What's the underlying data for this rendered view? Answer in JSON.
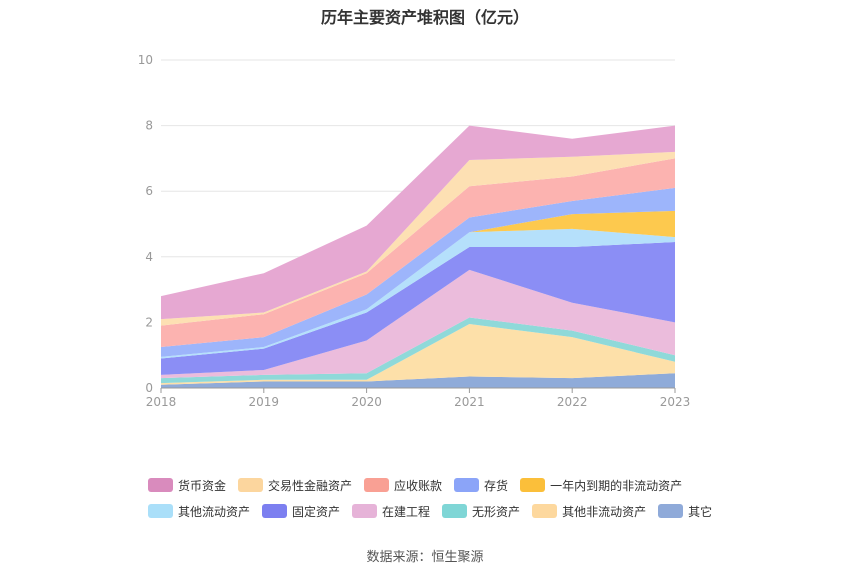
{
  "title": "历年主要资产堆积图（亿元）",
  "source": "数据来源：恒生聚源",
  "chart_data": {
    "type": "area",
    "stacked": true,
    "x": [
      "2018",
      "2019",
      "2020",
      "2021",
      "2022",
      "2023"
    ],
    "ylim": [
      0,
      10
    ],
    "yticks": [
      0,
      2,
      4,
      6,
      8,
      10
    ],
    "grid": true,
    "legend_position": "bottom",
    "series": [
      {
        "name": "其它",
        "color": "#8fabd9",
        "values": [
          0.1,
          0.2,
          0.2,
          0.35,
          0.3,
          0.45
        ]
      },
      {
        "name": "其他非流动资产",
        "color": "#fde0a9",
        "values": [
          0.05,
          0.05,
          0.05,
          1.6,
          1.25,
          0.35
        ]
      },
      {
        "name": "无形资产",
        "color": "#8fd9d9",
        "values": [
          0.15,
          0.15,
          0.2,
          0.2,
          0.2,
          0.2
        ]
      },
      {
        "name": "在建工程",
        "color": "#ebbcdc",
        "values": [
          0.1,
          0.15,
          1.0,
          1.45,
          0.85,
          1.0
        ]
      },
      {
        "name": "固定资产",
        "color": "#8b8ef5",
        "values": [
          0.5,
          0.65,
          0.85,
          0.7,
          1.7,
          2.45
        ]
      },
      {
        "name": "其他流动资产",
        "color": "#b5e0fb",
        "values": [
          0.05,
          0.05,
          0.1,
          0.45,
          0.55,
          0.15
        ]
      },
      {
        "name": "一年内到期的非流动资产",
        "color": "#fdc94e",
        "values": [
          0,
          0,
          0,
          0,
          0.45,
          0.8
        ]
      },
      {
        "name": "存货",
        "color": "#9db5fb",
        "values": [
          0.3,
          0.3,
          0.45,
          0.45,
          0.4,
          0.7
        ]
      },
      {
        "name": "应收账款",
        "color": "#fcb3b0",
        "values": [
          0.65,
          0.7,
          0.65,
          0.95,
          0.75,
          0.9
        ]
      },
      {
        "name": "交易性金融资产",
        "color": "#fde0b3",
        "values": [
          0.2,
          0.05,
          0.05,
          0.8,
          0.6,
          0.2
        ]
      },
      {
        "name": "货币资金",
        "color": "#e6a8d2",
        "values": [
          0.7,
          1.2,
          1.4,
          1.05,
          0.55,
          0.8
        ]
      }
    ]
  },
  "legend": {
    "row1": [
      {
        "name": "货币资金",
        "color": "#d98bbd"
      },
      {
        "name": "交易性金融资产",
        "color": "#fcd69e"
      },
      {
        "name": "应收账款",
        "color": "#f9a094"
      },
      {
        "name": "存货",
        "color": "#8ba4f8"
      },
      {
        "name": "一年内到期的非流动资产",
        "color": "#fbbf3a"
      }
    ],
    "row2": [
      {
        "name": "其他流动资产",
        "color": "#aadff9"
      },
      {
        "name": "固定资产",
        "color": "#7c7ff0"
      },
      {
        "name": "在建工程",
        "color": "#e6b3d8"
      },
      {
        "name": "无形资产",
        "color": "#7fd6d6"
      },
      {
        "name": "其他非流动资产",
        "color": "#fdd89e"
      },
      {
        "name": "其它",
        "color": "#8faad9"
      }
    ]
  }
}
